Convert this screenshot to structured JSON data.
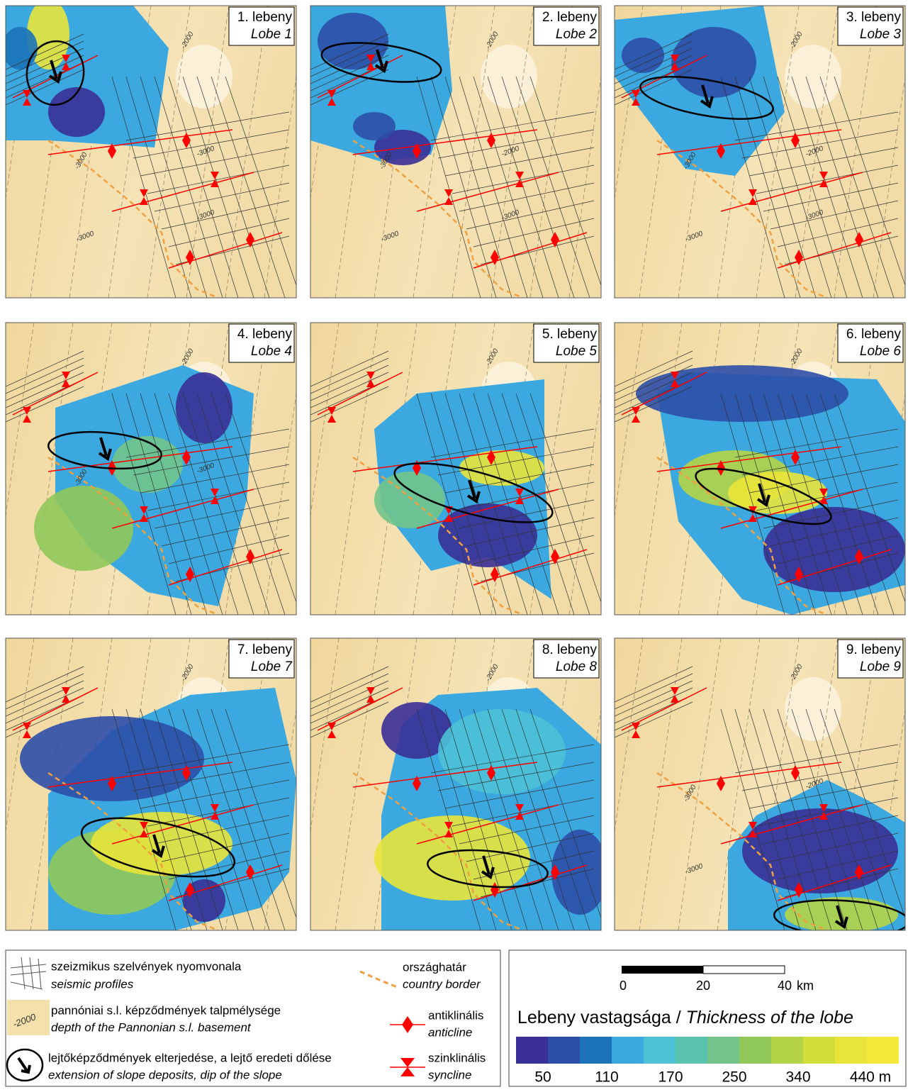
{
  "panels": [
    {
      "label": "1. lebeny",
      "label_en": "Lobe 1",
      "contours": [
        "-2000",
        "-3000",
        "-3000",
        "-3000",
        "-3000"
      ]
    },
    {
      "label": "2. lebeny",
      "label_en": "Lobe 2",
      "contours": [
        "-2000",
        "-3000",
        "-2000",
        "-3000",
        "-3000"
      ]
    },
    {
      "label": "3. lebeny",
      "label_en": "Lobe 3",
      "contours": [
        "-2000",
        "-3000",
        "-2000",
        "-3000",
        "-3000"
      ]
    },
    {
      "label": "4. lebeny",
      "label_en": "Lobe 4",
      "contours": [
        "-2000",
        "-3000",
        "-3000"
      ]
    },
    {
      "label": "5. lebeny",
      "label_en": "Lobe 5",
      "contours": [
        "-2000"
      ]
    },
    {
      "label": "6. lebeny",
      "label_en": "Lobe 6",
      "contours": [
        "-2000"
      ]
    },
    {
      "label": "7. lebeny",
      "label_en": "Lobe 7",
      "contours": [
        "-2000"
      ]
    },
    {
      "label": "8. lebeny",
      "label_en": "Lobe 8",
      "contours": [
        "-2000"
      ]
    },
    {
      "label": "9. lebeny",
      "label_en": "Lobe 9",
      "contours": [
        "-2000",
        "-3000",
        "-2000",
        "-3000"
      ]
    }
  ],
  "legend": {
    "items": [
      {
        "hu": "szeizmikus szelvények nyomvonala",
        "en": "seismic profiles"
      },
      {
        "hu": "pannóniai s.l. képződmények talpmélysége",
        "en": "depth of the Pannonian s.l. basement",
        "icon_label": "-2000"
      },
      {
        "hu": "lejtőképződmények elterjedése, a lejtő eredeti dőlése",
        "en": "extension of slope deposits, dip of the slope"
      },
      {
        "hu": "országhatár",
        "en": "country border"
      },
      {
        "hu": "antiklinális",
        "en": "anticline"
      },
      {
        "hu": "szinklinális",
        "en": "syncline"
      }
    ]
  },
  "scale": {
    "ticks": [
      "0",
      "20",
      "40"
    ],
    "unit": "km"
  },
  "thickness": {
    "title_hu": "Lebeny vastagsága / ",
    "title_en": "Thickness of the lobe",
    "ticks": [
      "50",
      "110",
      "170",
      "250",
      "340",
      "440 m"
    ],
    "colors": [
      "#3a2f96",
      "#2d4ea8",
      "#1c73b8",
      "#3ba8df",
      "#4dc1d6",
      "#5cc2b0",
      "#72c48b",
      "#90c85a",
      "#b5d445",
      "#d2df3b",
      "#e9e43a",
      "#f5e83a"
    ]
  }
}
